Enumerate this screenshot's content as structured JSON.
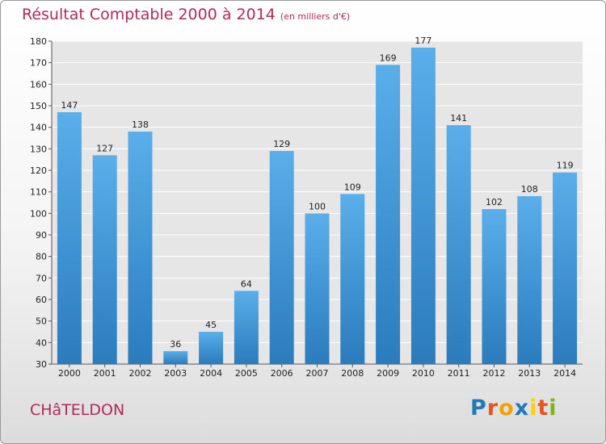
{
  "chart_data": {
    "type": "bar",
    "title": "Résultat Comptable 2000 à 2014",
    "subtitle": "(en milliers d'€)",
    "categories": [
      "2000",
      "2001",
      "2002",
      "2003",
      "2004",
      "2005",
      "2006",
      "2007",
      "2008",
      "2009",
      "2010",
      "2011",
      "2012",
      "2013",
      "2014"
    ],
    "values": [
      147,
      127,
      138,
      36,
      45,
      64,
      129,
      100,
      109,
      169,
      177,
      141,
      102,
      108,
      119
    ],
    "ylim": [
      30,
      180
    ],
    "yticks": [
      30,
      40,
      50,
      60,
      70,
      80,
      90,
      100,
      110,
      120,
      130,
      140,
      150,
      160,
      170,
      180
    ],
    "grid": true,
    "xlabel": "",
    "ylabel": ""
  },
  "location": "CHâTELDON",
  "logo": {
    "letters": [
      "P",
      "r",
      "o",
      "x",
      "i",
      "t",
      "i"
    ],
    "colors": [
      "#1f7ab8",
      "#e9531d",
      "#f2a100",
      "#1f7ab8",
      "#ffd200",
      "#e9531d",
      "#7ab51d"
    ]
  },
  "colors": {
    "bar_top": "#5aaeea",
    "bar_bottom": "#2a7cbd",
    "accent": "#b02a5b",
    "grid": "#ffffff",
    "plot_bg": "#e6e6e6"
  }
}
